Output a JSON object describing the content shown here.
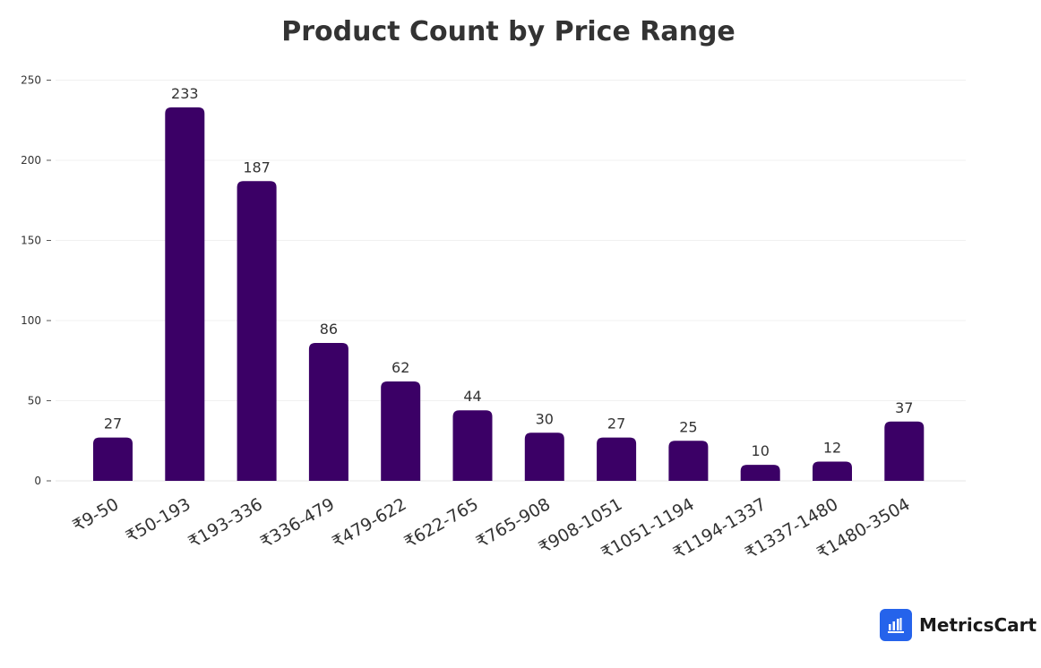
{
  "chart_data": {
    "type": "bar",
    "title": "Product Count by Price Range",
    "xlabel": "",
    "ylabel": "",
    "categories": [
      "₹9-50",
      "₹50-193",
      "₹193-336",
      "₹336-479",
      "₹479-622",
      "₹622-765",
      "₹765-908",
      "₹908-1051",
      "₹1051-1194",
      "₹1194-1337",
      "₹1337-1480",
      "₹1480-3504"
    ],
    "values": [
      27,
      233,
      187,
      86,
      62,
      44,
      30,
      27,
      25,
      10,
      12,
      37
    ],
    "ylim": [
      0,
      250
    ],
    "yticks": [
      "0",
      "50",
      "100",
      "150",
      "200",
      "250"
    ],
    "grid": true,
    "bar_color": "#3b0066"
  },
  "brand": {
    "name": "MetricsCart",
    "icon": "bar-chart-icon",
    "icon_color": "#2563eb"
  }
}
